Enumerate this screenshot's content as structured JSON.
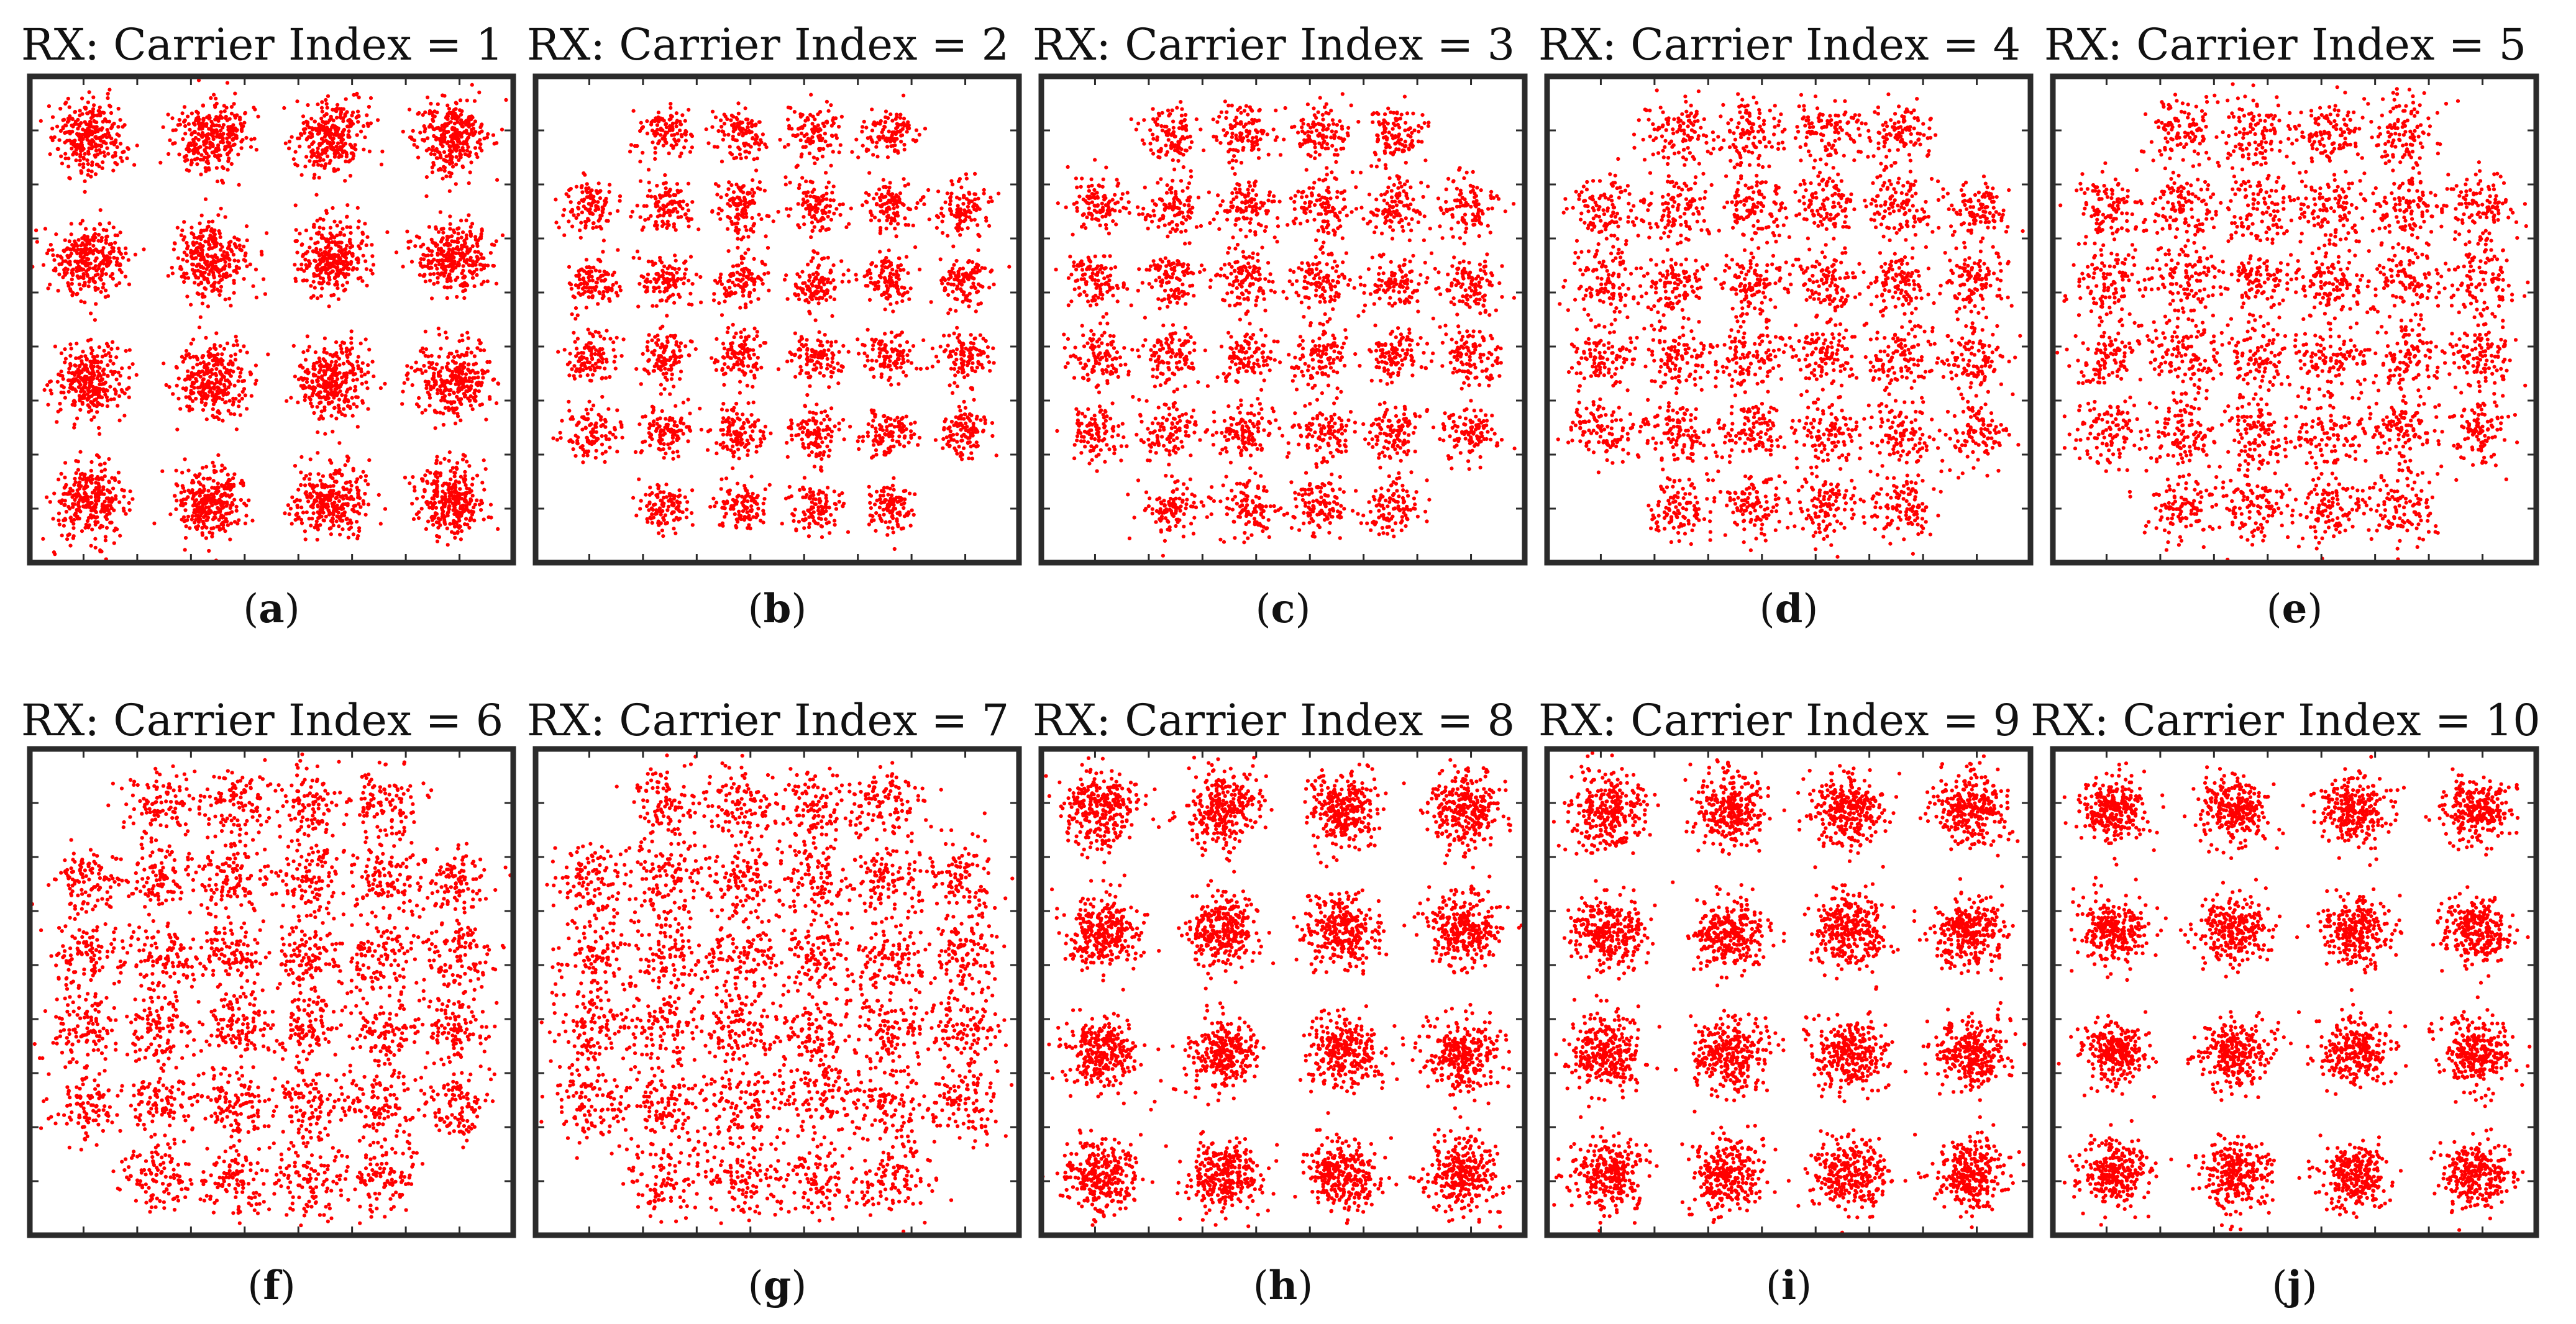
{
  "figure": {
    "marker_color": "#ff0000",
    "frame_color": "#2b2b2b"
  },
  "chart_data": [
    {
      "type": "scatter",
      "title": "RX: Carrier Index = 1",
      "label": "a",
      "modulation": "16-QAM",
      "grid": false,
      "legend": false,
      "xlim": [
        -4,
        4
      ],
      "ylim": [
        -4,
        4
      ],
      "noise_std": 0.3,
      "points_per_symbol": 300
    },
    {
      "type": "scatter",
      "title": "RX: Carrier Index = 2",
      "label": "b",
      "modulation": "32-QAM (cross)",
      "grid": false,
      "legend": false,
      "xlim": [
        -6.5,
        6.5
      ],
      "ylim": [
        -6.5,
        6.5
      ],
      "noise_std": 0.22,
      "points_per_symbol": 110
    },
    {
      "type": "scatter",
      "title": "RX: Carrier Index = 3",
      "label": "c",
      "modulation": "32-QAM (cross)",
      "grid": false,
      "legend": false,
      "xlim": [
        -6.5,
        6.5
      ],
      "ylim": [
        -6.5,
        6.5
      ],
      "noise_std": 0.25,
      "points_per_symbol": 110
    },
    {
      "type": "scatter",
      "title": "RX: Carrier Index = 4",
      "label": "d",
      "modulation": "32-QAM (cross)",
      "grid": false,
      "legend": false,
      "xlim": [
        -6.5,
        6.5
      ],
      "ylim": [
        -6.5,
        6.5
      ],
      "noise_std": 0.28,
      "points_per_symbol": 110
    },
    {
      "type": "scatter",
      "title": "RX: Carrier Index = 5",
      "label": "e",
      "modulation": "32-QAM (cross)",
      "grid": false,
      "legend": false,
      "xlim": [
        -6.5,
        6.5
      ],
      "ylim": [
        -6.5,
        6.5
      ],
      "noise_std": 0.3,
      "points_per_symbol": 110
    },
    {
      "type": "scatter",
      "title": "RX: Carrier Index = 6",
      "label": "f",
      "modulation": "32-QAM (cross)",
      "grid": false,
      "legend": false,
      "xlim": [
        -6.5,
        6.5
      ],
      "ylim": [
        -6.5,
        6.5
      ],
      "noise_std": 0.3,
      "points_per_symbol": 110
    },
    {
      "type": "scatter",
      "title": "RX: Carrier Index = 7",
      "label": "g",
      "modulation": "32-QAM (cross)",
      "grid": false,
      "legend": false,
      "xlim": [
        -6.5,
        6.5
      ],
      "ylim": [
        -6.5,
        6.5
      ],
      "noise_std": 0.33,
      "points_per_symbol": 110
    },
    {
      "type": "scatter",
      "title": "RX: Carrier Index = 8",
      "label": "h",
      "modulation": "16-QAM",
      "grid": false,
      "legend": false,
      "xlim": [
        -4,
        4
      ],
      "ylim": [
        -4,
        4
      ],
      "noise_std": 0.3,
      "points_per_symbol": 300
    },
    {
      "type": "scatter",
      "title": "RX: Carrier Index = 9",
      "label": "i",
      "modulation": "16-QAM",
      "grid": false,
      "legend": false,
      "xlim": [
        -4,
        4
      ],
      "ylim": [
        -4,
        4
      ],
      "noise_std": 0.3,
      "points_per_symbol": 300
    },
    {
      "type": "scatter",
      "title": "RX: Carrier Index = 10",
      "label": "j",
      "modulation": "16-QAM",
      "grid": false,
      "legend": false,
      "xlim": [
        -4,
        4
      ],
      "ylim": [
        -4,
        4
      ],
      "noise_std": 0.28,
      "points_per_symbol": 280
    }
  ]
}
